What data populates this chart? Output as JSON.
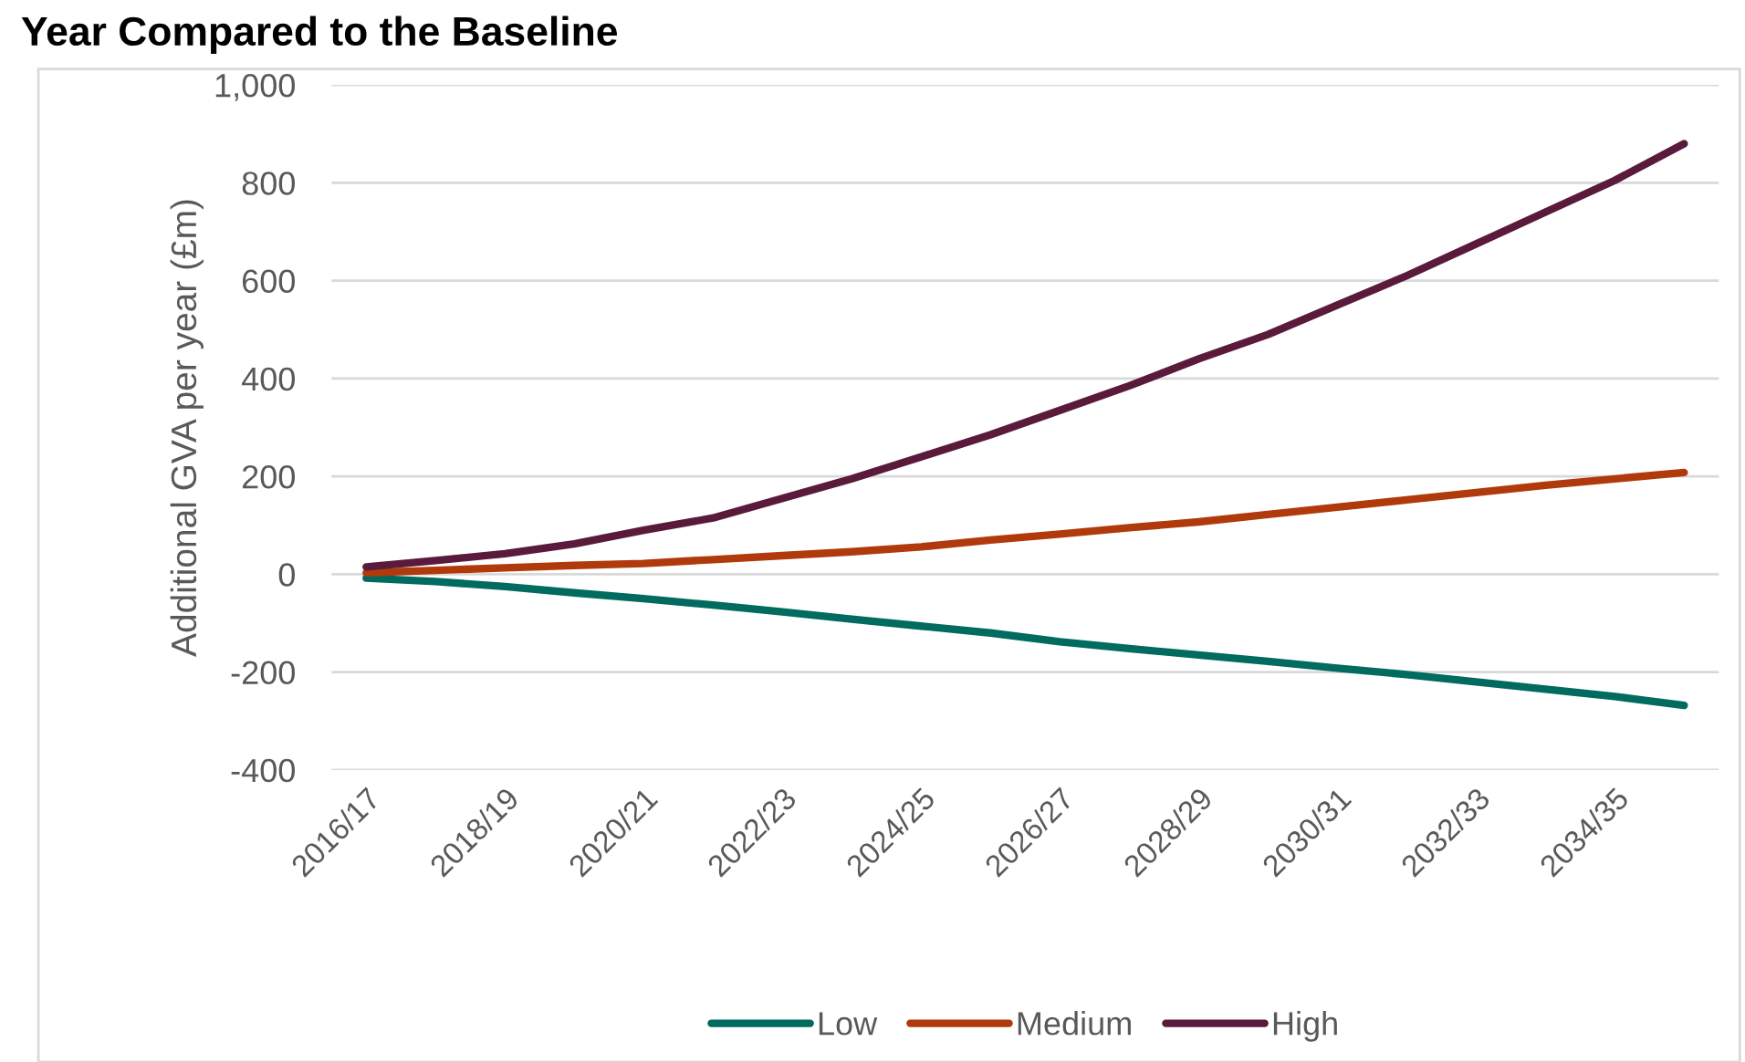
{
  "chart_data": {
    "type": "line",
    "title": "Year Compared to the Baseline",
    "ylabel": "Additional GVA per year (£m)",
    "categories": [
      "2016/17",
      null,
      "2018/19",
      null,
      "2020/21",
      null,
      "2022/23",
      null,
      "2024/25",
      null,
      "2026/27",
      null,
      "2028/29",
      null,
      "2030/31",
      null,
      "2032/33",
      null,
      "2034/35",
      null
    ],
    "series": [
      {
        "name": "Low",
        "color": "#006b5e",
        "values": [
          -8,
          -15,
          -25,
          -38,
          -50,
          -63,
          -77,
          -92,
          -106,
          -120,
          -138,
          -152,
          -165,
          -178,
          -192,
          -205,
          -220,
          -235,
          -250,
          -268
        ]
      },
      {
        "name": "Medium",
        "color": "#b03a0b",
        "values": [
          3,
          8,
          13,
          18,
          22,
          30,
          38,
          46,
          56,
          70,
          82,
          95,
          107,
          122,
          137,
          152,
          167,
          182,
          195,
          208
        ]
      },
      {
        "name": "High",
        "color": "#5a1a3c",
        "values": [
          15,
          28,
          42,
          62,
          90,
          115,
          155,
          195,
          240,
          285,
          335,
          385,
          440,
          490,
          550,
          610,
          675,
          740,
          805,
          880
        ]
      }
    ],
    "ylim": [
      -400,
      1000
    ],
    "yticks": [
      {
        "value": -400,
        "label": "-400"
      },
      {
        "value": -200,
        "label": "-200"
      },
      0,
      200,
      400,
      600,
      800,
      {
        "value": 1000,
        "label": "1,000"
      }
    ],
    "grid": "y",
    "legend": "bottom",
    "marker": "none",
    "line_style": "solid"
  }
}
